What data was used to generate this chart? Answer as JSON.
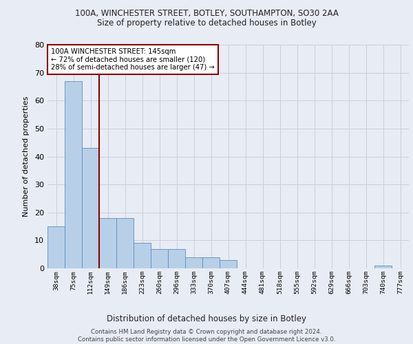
{
  "title_line1": "100A, WINCHESTER STREET, BOTLEY, SOUTHAMPTON, SO30 2AA",
  "title_line2": "Size of property relative to detached houses in Botley",
  "xlabel": "Distribution of detached houses by size in Botley",
  "ylabel": "Number of detached properties",
  "footer": "Contains HM Land Registry data © Crown copyright and database right 2024.\nContains public sector information licensed under the Open Government Licence v3.0.",
  "bin_labels": [
    "38sqm",
    "75sqm",
    "112sqm",
    "149sqm",
    "186sqm",
    "223sqm",
    "260sqm",
    "296sqm",
    "333sqm",
    "370sqm",
    "407sqm",
    "444sqm",
    "481sqm",
    "518sqm",
    "555sqm",
    "592sqm",
    "629sqm",
    "666sqm",
    "703sqm",
    "740sqm",
    "777sqm"
  ],
  "bar_values": [
    15,
    67,
    43,
    18,
    18,
    9,
    7,
    7,
    4,
    4,
    3,
    0,
    0,
    0,
    0,
    0,
    0,
    0,
    0,
    1,
    0
  ],
  "bar_color": "#b8cfe8",
  "bar_edge_color": "#5a8fc0",
  "bar_width": 1.0,
  "ylim": [
    0,
    80
  ],
  "yticks": [
    0,
    10,
    20,
    30,
    40,
    50,
    60,
    70,
    80
  ],
  "property_label": "100A WINCHESTER STREET: 145sqm",
  "pct_smaller": "72% of detached houses are smaller (120)",
  "pct_larger": "28% of semi-detached houses are larger (47)",
  "vline_color": "#8b0000",
  "annotation_box_color": "#8b0000",
  "grid_color": "#c8d0dc",
  "bg_color": "#e8ecf4",
  "plot_bg_color": "#e8ecf4"
}
